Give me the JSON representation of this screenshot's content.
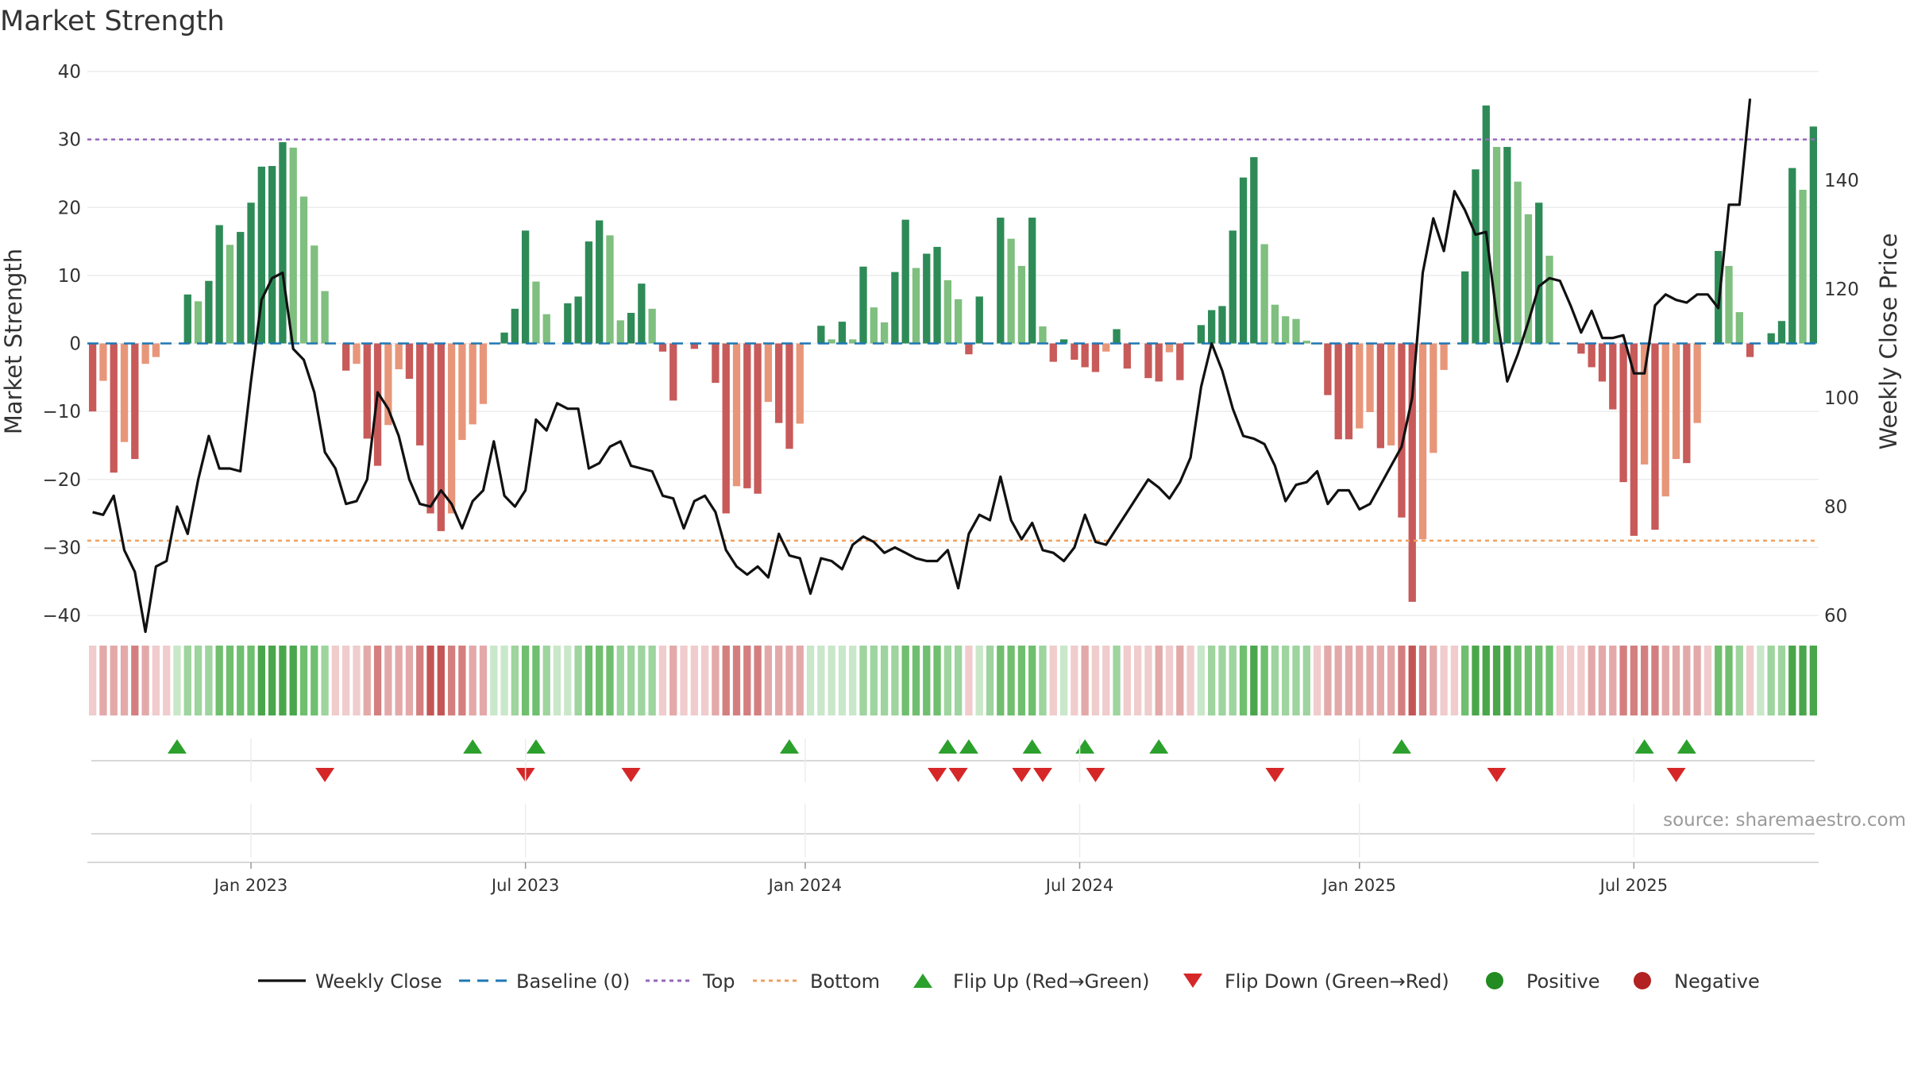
{
  "chart_data": {
    "type": "bar+line",
    "title": "Market Strength",
    "ylabel_left": "Market Strength",
    "ylabel_right": "Weekly Close Price",
    "ylim_left": [
      -40,
      40
    ],
    "yticks_left": [
      40,
      30,
      20,
      10,
      0,
      -10,
      -20,
      -30,
      -40
    ],
    "ytick_labels_left": [
      "40",
      "30",
      "20",
      "10",
      "0",
      "−10",
      "−20",
      "−30",
      "−40"
    ],
    "ylim_right": [
      60,
      160
    ],
    "yticks_right": [
      140,
      120,
      100,
      80,
      60
    ],
    "ytick_labels_right": [
      "140",
      "120",
      "100",
      "80",
      "60"
    ],
    "top_threshold": 30,
    "bottom_threshold": -29,
    "x_start_week": 0,
    "x_end_week": 157,
    "date_ticks": [
      {
        "label": "Jan 2023",
        "week": 15
      },
      {
        "label": "Jul 2023",
        "week": 41
      },
      {
        "label": "Jan 2024",
        "week": 67.5
      },
      {
        "label": "Jul 2024",
        "week": 93.5
      },
      {
        "label": "Jan 2025",
        "week": 120
      },
      {
        "label": "Jul 2025",
        "week": 146
      }
    ],
    "strength": [
      -10,
      -5.5,
      -19,
      -14.5,
      -17,
      -3,
      -2,
      0,
      0,
      7.2,
      6.2,
      9.2,
      17.4,
      14.5,
      16.4,
      20.7,
      26,
      26.1,
      29.6,
      28.8,
      21.6,
      14.4,
      7.7,
      0,
      -4,
      -3,
      -14,
      -18,
      -12,
      -3.8,
      -5.2,
      -15,
      -25,
      -27.6,
      -25,
      -14.2,
      -11.9,
      -8.9,
      0,
      1.6,
      5.1,
      16.6,
      9.1,
      4.3,
      0,
      5.9,
      6.9,
      15,
      18.1,
      15.9,
      3.4,
      4.5,
      8.8,
      5.1,
      -1.2,
      -8.4,
      0,
      -0.8,
      0,
      -5.8,
      -25,
      -21,
      -21.3,
      -22.1,
      -8.6,
      -11.7,
      -15.5,
      -11.8,
      0,
      2.6,
      0.6,
      3.2,
      0.6,
      11.3,
      5.3,
      3.1,
      10.5,
      18.2,
      11.1,
      13.2,
      14.2,
      9.3,
      6.5,
      -1.6,
      6.9,
      0,
      18.5,
      15.4,
      11.4,
      18.5,
      2.5,
      -2.7,
      0.6,
      -2.4,
      -3.5,
      -4.2,
      -1.2,
      2.1,
      -3.7,
      0,
      -5.1,
      -5.6,
      -1.3,
      -5.4,
      0,
      2.7,
      4.9,
      5.5,
      16.6,
      24.4,
      27.4,
      14.6,
      5.7,
      4,
      3.6,
      0.4,
      0,
      -7.6,
      -14.1,
      -14.1,
      -12.5,
      -10.1,
      -15.4,
      -15,
      -25.6,
      -38,
      -28.8,
      -16.1,
      -3.9,
      0,
      10.6,
      25.6,
      35,
      28.9,
      28.9,
      23.8,
      19,
      20.7,
      12.9,
      0,
      0,
      -1.5,
      -3.5,
      -5.6,
      -9.7,
      -20.4,
      -28.3,
      -17.8,
      -27.4,
      -22.5,
      -17,
      -17.6,
      -11.7,
      0,
      13.6,
      11.4,
      4.6,
      -2,
      0,
      1.5,
      3.3,
      25.8,
      22.6,
      31.9
    ],
    "price": [
      79,
      78.5,
      82,
      72,
      68,
      57,
      69,
      70,
      80,
      75,
      85,
      93,
      87,
      87,
      86.5,
      103,
      118,
      122,
      123,
      109,
      107,
      101,
      90,
      87,
      80.5,
      81,
      85,
      101,
      98,
      93,
      85,
      80.5,
      80,
      83,
      80.5,
      76,
      81,
      83,
      92,
      82,
      80,
      83,
      96,
      94,
      99,
      98,
      98,
      87,
      88,
      91,
      92,
      87.5,
      87,
      86.5,
      82,
      81.5,
      76,
      81,
      82,
      79,
      72,
      69,
      67.5,
      69,
      67,
      75,
      71,
      70.5,
      64,
      70.5,
      70,
      68.5,
      73,
      74.5,
      73.5,
      71.5,
      72.5,
      71.5,
      70.5,
      70,
      70,
      72,
      65,
      75,
      78.5,
      77.5,
      85.5,
      77.5,
      74,
      77,
      72,
      71.5,
      70,
      72.5,
      78.5,
      73.5,
      73,
      76,
      79,
      82,
      85,
      83.5,
      81.5,
      84.5,
      89,
      102,
      110,
      105,
      98,
      93,
      92.5,
      91.5,
      87.5,
      81,
      84,
      84.5,
      86.5,
      80.5,
      83,
      83,
      79.5,
      80.5,
      84,
      87.5,
      91,
      100,
      123,
      133,
      127,
      138,
      134.5,
      130,
      130.5,
      115,
      103,
      108,
      114,
      120.5,
      122,
      121.5,
      117,
      112,
      116,
      111,
      111,
      111.5,
      104.5,
      104.5,
      117,
      119,
      118,
      117.5,
      119,
      119,
      116.5,
      135.5,
      135.5,
      155
    ],
    "regime_intensity": [
      -1,
      -2,
      -2,
      -2,
      -3,
      -2,
      -1,
      -1,
      1,
      2,
      2,
      2,
      3,
      3,
      3,
      3,
      4,
      4,
      4,
      4,
      3,
      3,
      2,
      -1,
      -1,
      -1,
      -2,
      -3,
      -2,
      -2,
      -2,
      -3,
      -4,
      -4,
      -3,
      -3,
      -2,
      -2,
      1,
      1,
      2,
      3,
      3,
      2,
      1,
      1,
      2,
      3,
      3,
      3,
      2,
      2,
      2,
      2,
      -1,
      -2,
      -1,
      -1,
      -1,
      -2,
      -3,
      -3,
      -3,
      -3,
      -2,
      -2,
      -2,
      -2,
      1,
      1,
      1,
      1,
      1,
      2,
      2,
      2,
      2,
      3,
      3,
      3,
      3,
      2,
      2,
      -1,
      1,
      2,
      3,
      3,
      3,
      3,
      2,
      -1,
      1,
      -1,
      -2,
      -1,
      -1,
      2,
      -1,
      -1,
      -1,
      -2,
      -1,
      -2,
      -1,
      1,
      2,
      2,
      2,
      3,
      4,
      3,
      2,
      2,
      2,
      2,
      -1,
      -2,
      -2,
      -2,
      -2,
      -2,
      -2,
      -2,
      -3,
      -4,
      -3,
      -2,
      -1,
      -1,
      3,
      4,
      4,
      4,
      4,
      3,
      3,
      3,
      3,
      -1,
      -1,
      -1,
      -2,
      -2,
      -2,
      -3,
      -3,
      -3,
      -3,
      -2,
      -2,
      -2,
      -2,
      -1,
      3,
      3,
      2,
      -1,
      1,
      2,
      2,
      4,
      4,
      4
    ],
    "flip_up_weeks": [
      8,
      36,
      42,
      66,
      81,
      83,
      89,
      94,
      101,
      124,
      147,
      151
    ],
    "flip_down_weeks": [
      22,
      41,
      51,
      80,
      82,
      88,
      90,
      95,
      112,
      133,
      150
    ],
    "legend": [
      {
        "label": "Weekly Close",
        "icon": "line-icon"
      },
      {
        "label": "Baseline (0)",
        "icon": "dashed-line-icon"
      },
      {
        "label": "Top",
        "icon": "dotted-line-icon"
      },
      {
        "label": "Bottom",
        "icon": "dotted-line-icon"
      },
      {
        "label": "Flip Up (Red→Green)",
        "icon": "triangle-up-icon"
      },
      {
        "label": "Flip Down (Green→Red)",
        "icon": "triangle-down-icon"
      },
      {
        "label": "Positive",
        "icon": "circle-icon"
      },
      {
        "label": "Negative",
        "icon": "circle-icon"
      }
    ],
    "source": "source: sharemaestro.com"
  },
  "colors": {
    "pos_strong": "#2e8b57",
    "pos_light": "#7fbf7f",
    "neg_strong": "#c85a5a",
    "neg_light": "#e8967a",
    "price_line": "#111111",
    "baseline": "#1f77b4",
    "top_line": "#9467bd",
    "bottom_line": "#f0a060",
    "flip_up": "#2ca02c",
    "flip_down": "#d62728",
    "legend_positive": "#228b22",
    "legend_negative": "#b22222",
    "grid": "#ececec",
    "axis": "#cccccc"
  }
}
